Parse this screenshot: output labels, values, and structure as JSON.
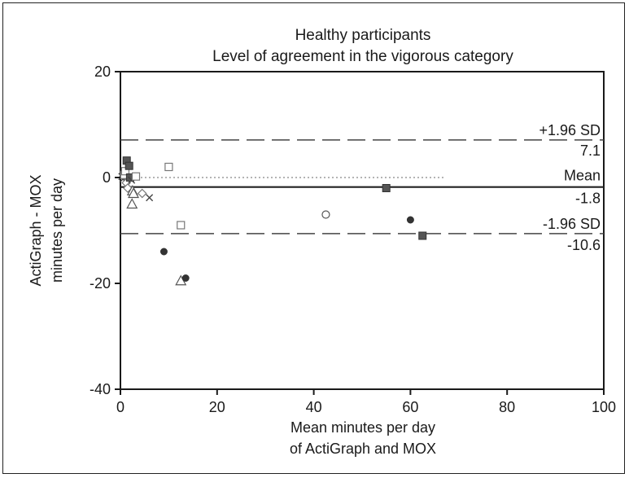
{
  "chart_data": {
    "type": "scatter",
    "title": "Healthy participants",
    "subtitle": "Level of agreement in the vigorous category",
    "xlabel_line1": "Mean minutes per day",
    "xlabel_line2": "of ActiGraph and MOX",
    "ylabel_line1": "ActiGraph - MOX",
    "ylabel_line2": "minutes per day",
    "xlim": [
      0,
      100
    ],
    "ylim": [
      -40,
      20
    ],
    "xticks": [
      0,
      20,
      40,
      60,
      80,
      100
    ],
    "yticks": [
      20,
      0,
      -20,
      -40
    ],
    "grid": false,
    "reference_lines": {
      "upper_label": "+1.96 SD",
      "upper_value": 7.1,
      "upper_value_label": "7.1",
      "mean_label": "Mean",
      "mean_value": -1.8,
      "mean_value_label": "-1.8",
      "lower_label": "-1.96 SD",
      "lower_value": -10.6,
      "lower_value_label": "-10.6",
      "zero_line": 0
    },
    "points": [
      {
        "x": 0.3,
        "y": 0.2,
        "marker": "x"
      },
      {
        "x": 0.5,
        "y": -0.3,
        "marker": "x"
      },
      {
        "x": 0.8,
        "y": 0.5,
        "marker": "square-open"
      },
      {
        "x": 1.0,
        "y": 1.2,
        "marker": "square-open"
      },
      {
        "x": 1.2,
        "y": -1.0,
        "marker": "diamond-open"
      },
      {
        "x": 1.5,
        "y": -2.0,
        "marker": "diamond-open"
      },
      {
        "x": 1.3,
        "y": 3.2,
        "marker": "square-filled"
      },
      {
        "x": 1.8,
        "y": 2.2,
        "marker": "square-filled"
      },
      {
        "x": 2.0,
        "y": 0.0,
        "marker": "square-filled"
      },
      {
        "x": 2.3,
        "y": -0.5,
        "marker": "x"
      },
      {
        "x": 2.5,
        "y": -2.5,
        "marker": "triangle-open"
      },
      {
        "x": 2.7,
        "y": -3.0,
        "marker": "triangle-open"
      },
      {
        "x": 2.4,
        "y": -5.0,
        "marker": "triangle-open"
      },
      {
        "x": 3.2,
        "y": 0.2,
        "marker": "square-open"
      },
      {
        "x": 4.5,
        "y": -3.0,
        "marker": "diamond-open"
      },
      {
        "x": 6.0,
        "y": -3.8,
        "marker": "x"
      },
      {
        "x": 10.0,
        "y": 2.0,
        "marker": "square-open"
      },
      {
        "x": 9.0,
        "y": -14.0,
        "marker": "circle-filled"
      },
      {
        "x": 12.5,
        "y": -9.0,
        "marker": "square-open"
      },
      {
        "x": 12.5,
        "y": -19.5,
        "marker": "triangle-open"
      },
      {
        "x": 13.5,
        "y": -19.0,
        "marker": "circle-filled"
      },
      {
        "x": 42.5,
        "y": -7.0,
        "marker": "circle-open"
      },
      {
        "x": 55.0,
        "y": -2.0,
        "marker": "square-filled"
      },
      {
        "x": 60.0,
        "y": -8.0,
        "marker": "circle-filled"
      },
      {
        "x": 62.5,
        "y": -11.0,
        "marker": "square-filled"
      }
    ],
    "colors": {
      "filled_marker": "#555555",
      "open_marker_stroke": "#777777",
      "line": "#222222"
    }
  }
}
